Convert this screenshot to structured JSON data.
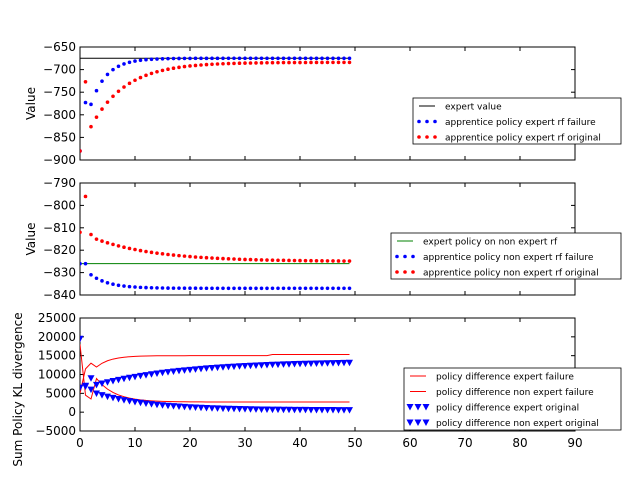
{
  "chart_data": [
    {
      "type": "line",
      "ylabel": "Value",
      "xlim": [
        0,
        90
      ],
      "ylim": [
        -900,
        -650
      ],
      "yticks": [
        -900,
        -850,
        -800,
        -750,
        -700,
        -650
      ],
      "show_xticklabels": false,
      "legend_loc": "center-right",
      "series": [
        {
          "name": "expert value",
          "style": "line",
          "color": "#000000",
          "kind": "const",
          "value": -675,
          "x_end": 49
        },
        {
          "name": "apprentice policy expert rf failure",
          "style": "dots",
          "color": "#0000ff",
          "kind": "rise",
          "start": -880,
          "end": -675,
          "rate": 0.35,
          "early": [
            -880,
            -773
          ]
        },
        {
          "name": "apprentice policy expert rf original",
          "style": "dots",
          "color": "#ff0000",
          "kind": "rise",
          "start": -880,
          "end": -684,
          "rate": 0.16,
          "early": [
            -880,
            -727
          ]
        }
      ]
    },
    {
      "type": "line",
      "ylabel": "Value",
      "xlim": [
        0,
        90
      ],
      "ylim": [
        -840,
        -790
      ],
      "yticks": [
        -840,
        -830,
        -820,
        -810,
        -800,
        -790
      ],
      "show_xticklabels": false,
      "legend_loc": "center-right",
      "series": [
        {
          "name": "expert policy on non expert rf",
          "style": "line",
          "color": "#008000",
          "kind": "const",
          "value": -826,
          "x_end": 49
        },
        {
          "name": "apprentice policy non expert rf failure",
          "style": "dots",
          "color": "#0000ff",
          "kind": "decay",
          "start": -826,
          "end": -837,
          "rate": 0.3,
          "early": [
            -826,
            -826
          ]
        },
        {
          "name": "apprentice policy non expert rf original",
          "style": "dots",
          "color": "#ff0000",
          "kind": "decay",
          "start": -812,
          "end": -825,
          "rate": 0.09,
          "early": [
            -812,
            -796,
            -813
          ]
        }
      ]
    },
    {
      "type": "line",
      "ylabel": "Sum Policy KL divergence",
      "xlim": [
        0,
        90
      ],
      "ylim": [
        -5000,
        25000
      ],
      "yticks": [
        -5000,
        0,
        5000,
        10000,
        15000,
        20000,
        25000
      ],
      "xticks": [
        0,
        10,
        20,
        30,
        40,
        50,
        60,
        70,
        80,
        90
      ],
      "show_xticklabels": true,
      "legend_loc": "lower-right",
      "series": [
        {
          "name": "policy difference expert failure",
          "style": "line",
          "color": "#ff0000",
          "kind": "rise",
          "start": 5000,
          "end": 15000,
          "rate": 0.4,
          "early": [
            5000,
            11500,
            13000
          ],
          "late": {
            "x0": 35,
            "delta": 300
          }
        },
        {
          "name": "policy difference non expert failure",
          "style": "line",
          "color": "#ff0000",
          "kind": "decay",
          "start": 18000,
          "end": 2700,
          "rate": 0.3,
          "early": [
            18000,
            4500,
            3500
          ]
        },
        {
          "name": "policy difference expert original",
          "style": "triangles",
          "color": "#0000ff",
          "kind": "rise",
          "start": 6000,
          "end": 13500,
          "rate": 0.06,
          "early": [
            19500,
            7000,
            9000
          ]
        },
        {
          "name": "policy difference non expert original",
          "style": "triangles",
          "color": "#0000ff",
          "kind": "decay",
          "start": 6500,
          "end": 500,
          "rate": 0.1,
          "early": [
            6500,
            6800,
            6000
          ]
        }
      ]
    }
  ]
}
